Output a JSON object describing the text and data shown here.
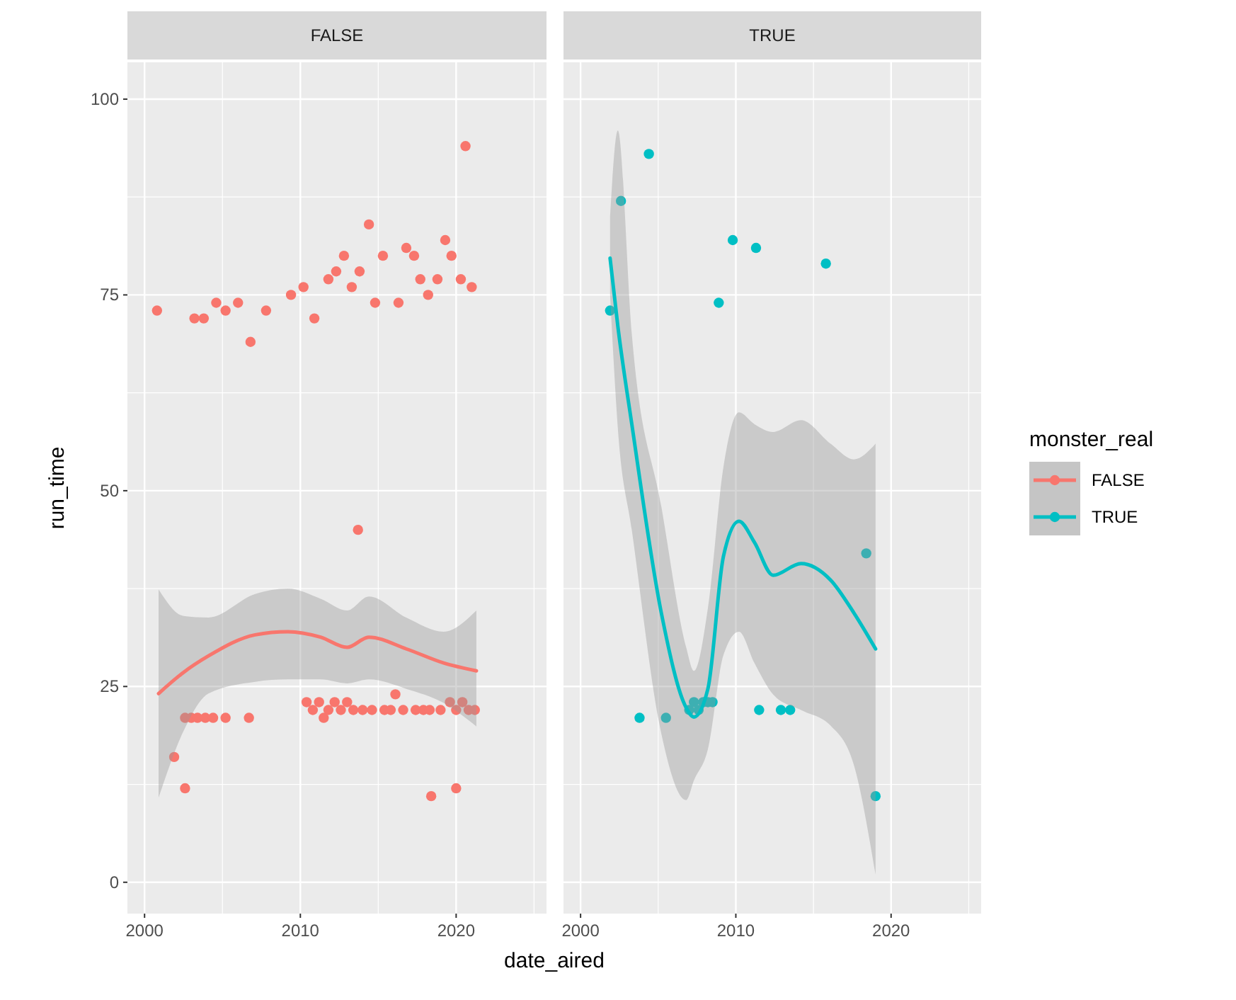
{
  "chart_data": [
    {
      "type": "scatter",
      "title": "FALSE",
      "ylabel": "run_time",
      "xlabel": "date_aired",
      "xlim": [
        1998.9,
        2025.8
      ],
      "ylim": [
        -4,
        104.7
      ],
      "xticks": [
        2000,
        2010,
        2020
      ],
      "yticks": [
        0,
        25,
        50,
        75,
        100
      ],
      "grid": true,
      "marker": "circle",
      "legend_title": "monster_real",
      "legend": "right",
      "series": [
        {
          "name": "FALSE",
          "color": "#f8766d",
          "x": [
            2000.8,
            2003.2,
            2003.8,
            2004.6,
            2005.2,
            2006,
            2006.8,
            2007.8,
            2009.4,
            2010.2,
            2010.9,
            2011.8,
            2012.3,
            2012.8,
            2013.3,
            2013.8,
            2014.4,
            2014.8,
            2015.3,
            2016.3,
            2016.8,
            2017.3,
            2017.7,
            2018.2,
            2018.8,
            2019.3,
            2019.7,
            2020.3,
            2020.6,
            2021,
            2013.7,
            2001.9,
            2002.6,
            2018.4,
            2020,
            2002.6,
            2003,
            2003.4,
            2003.9,
            2004.4,
            2005.2,
            2006.7,
            2010.4,
            2010.8,
            2011.2,
            2011.5,
            2011.8,
            2012.2,
            2012.6,
            2013,
            2013.4,
            2014,
            2014.6,
            2015.4,
            2015.8,
            2016.1,
            2016.6,
            2017.4,
            2017.9,
            2018.3,
            2019,
            2019.6,
            2020,
            2020.4,
            2020.8,
            2021.2
          ],
          "values": [
            73,
            72,
            72,
            74,
            73,
            74,
            69,
            73,
            75,
            76,
            72,
            77,
            78,
            80,
            76,
            78,
            84,
            74,
            80,
            74,
            81,
            80,
            77,
            75,
            77,
            82,
            80,
            77,
            94,
            76,
            45,
            16,
            12,
            11,
            12,
            21,
            21,
            21,
            21,
            21,
            21,
            21,
            23,
            22,
            23,
            21,
            22,
            23,
            22,
            23,
            22,
            22,
            22,
            22,
            22,
            24,
            22,
            22,
            22,
            22,
            22,
            23,
            22,
            23,
            22,
            22
          ]
        },
        {
          "type": "line",
          "marker": "none",
          "color": "#f8766d",
          "x": [
            2000.9,
            2002.5,
            2004.1,
            2007.1,
            2009.2,
            2011.3,
            2013,
            2014.4,
            2016.8,
            2019.2,
            2021.3
          ],
          "values": [
            24.1,
            26.8,
            28.9,
            31.6,
            32,
            31.3,
            30,
            31.3,
            29.8,
            28,
            27
          ],
          "lower": [
            10.8,
            19.3,
            24.1,
            25.6,
            25.9,
            25.9,
            25.4,
            25.9,
            24.7,
            22.9,
            19.9
          ],
          "upper": [
            37.4,
            34,
            33.8,
            36.8,
            37.5,
            36.2,
            34.7,
            36.5,
            33.8,
            32,
            34.7
          ]
        }
      ]
    },
    {
      "type": "scatter",
      "title": "TRUE",
      "xlim": [
        1998.9,
        2025.8
      ],
      "ylim": [
        -4,
        104.7
      ],
      "xticks": [
        2000,
        2010,
        2020
      ],
      "yticks": [
        0,
        25,
        50,
        75,
        100
      ],
      "grid": true,
      "marker": "circle",
      "tick_labels": "x",
      "series": [
        {
          "name": "TRUE",
          "color": "#00bfc4",
          "x": [
            2001.9,
            2002.6,
            2004.4,
            2008.9,
            2009.8,
            2011.3,
            2015.8,
            2018.4,
            2019,
            2003.8,
            2005.5,
            2007,
            2007.3,
            2007.6,
            2007.9,
            2008.2,
            2008.5,
            2011.5,
            2012.9,
            2013.5
          ],
          "values": [
            73,
            87,
            93,
            74,
            82,
            81,
            79,
            42,
            11,
            21,
            21,
            22,
            23,
            22,
            23,
            23,
            23,
            22,
            22,
            22
          ]
        },
        {
          "type": "line",
          "marker": "none",
          "color": "#00bfc4",
          "x": [
            2001.9,
            2002.4,
            2003.3,
            2005.2,
            2006.8,
            2007.3,
            2008.2,
            2009.2,
            2010.2,
            2011.2,
            2012.4,
            2014.2,
            2016.1,
            2017.6,
            2019
          ],
          "values": [
            79.7,
            71,
            58.5,
            34.4,
            22.3,
            21.1,
            24.7,
            41.6,
            46.1,
            43.4,
            39.2,
            40.7,
            38.6,
            34.4,
            29.8
          ],
          "lower": [
            75,
            58,
            45,
            19,
            10.5,
            13,
            17,
            29,
            32,
            28,
            24,
            22,
            20,
            15,
            1
          ],
          "upper": [
            85,
            96,
            70,
            48,
            30,
            27,
            35,
            53,
            60,
            58.5,
            57.5,
            59,
            56,
            54,
            56
          ]
        }
      ]
    }
  ]
}
